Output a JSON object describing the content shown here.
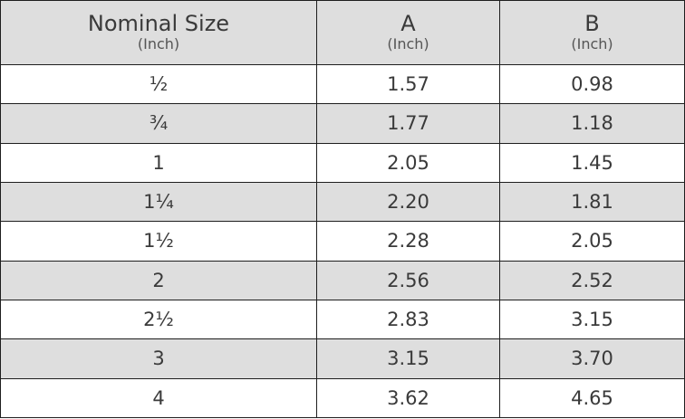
{
  "headers": [
    {
      "label": "Nominal Size",
      "unit": "(Inch)"
    },
    {
      "label": "A",
      "unit": "(Inch)"
    },
    {
      "label": "B",
      "unit": "(Inch)"
    }
  ],
  "rows": [
    [
      "½",
      "1.57",
      "0.98"
    ],
    [
      "¾",
      "1.77",
      "1.18"
    ],
    [
      "1",
      "2.05",
      "1.45"
    ],
    [
      "1¼",
      "2.20",
      "1.81"
    ],
    [
      "1½",
      "2.28",
      "2.05"
    ],
    [
      "2",
      "2.56",
      "2.52"
    ],
    [
      "2½",
      "2.83",
      "3.15"
    ],
    [
      "3",
      "3.15",
      "3.70"
    ],
    [
      "4",
      "3.62",
      "4.65"
    ]
  ],
  "colors": {
    "stripe": "#dedede",
    "border": "#1e1e1e",
    "text": "#3a3a3a"
  }
}
